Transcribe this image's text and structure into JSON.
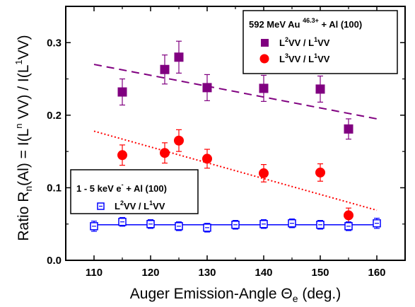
{
  "chart_data": [
    {
      "type": "scatter",
      "xlabel": "Auger Emission-Angle Θe (deg.)",
      "ylabel": "Ratio  Rn(Al) = I(LnVV) / I(L1VV)",
      "xlim": [
        105,
        165
      ],
      "ylim": [
        0.0,
        0.35
      ],
      "xticks": [
        110,
        120,
        130,
        140,
        150,
        160
      ],
      "yticks": [
        0.0,
        0.1,
        0.2,
        0.3
      ],
      "ytick_labels": [
        "0.0",
        "0.1",
        "0.2",
        "0.3"
      ],
      "grid": false,
      "legends": [
        {
          "placement": "top-right",
          "title": "592 MeV Au 46.3+ + Al (100)",
          "entries": [
            "L2VV / L1VV",
            "L3VV / L1VV"
          ]
        },
        {
          "placement": "middle-left",
          "title": "1 - 5 keV e- + Al (100)",
          "entries": [
            "L2VV / L1VV"
          ]
        }
      ],
      "series": [
        {
          "name": "L2VV / L1VV",
          "group": "592 MeV Au 46.3+ + Al (100)",
          "marker": "filled-square",
          "color": "#800080",
          "x": [
            115,
            122.5,
            125,
            130,
            140,
            150,
            155
          ],
          "y": [
            0.232,
            0.263,
            0.28,
            0.238,
            0.237,
            0.236,
            0.181
          ],
          "yerr": [
            0.018,
            0.02,
            0.022,
            0.018,
            0.018,
            0.018,
            0.014
          ],
          "fit": {
            "style": "dashed",
            "x": [
              110,
              160
            ],
            "y": [
              0.27,
              0.195
            ]
          }
        },
        {
          "name": "L3VV / L1VV",
          "group": "592 MeV Au 46.3+ + Al (100)",
          "marker": "filled-circle",
          "color": "#ff0000",
          "x": [
            115,
            122.5,
            125,
            130,
            140,
            150,
            155
          ],
          "y": [
            0.145,
            0.148,
            0.165,
            0.14,
            0.12,
            0.121,
            0.062
          ],
          "yerr": [
            0.014,
            0.014,
            0.015,
            0.013,
            0.012,
            0.012,
            0.01
          ],
          "fit": {
            "style": "dotted",
            "x": [
              110,
              160
            ],
            "y": [
              0.178,
              0.069
            ]
          }
        },
        {
          "name": "L2VV / L1VV",
          "group": "1 - 5 keV e- + Al (100)",
          "marker": "open-square",
          "color": "#0000ff",
          "x": [
            110,
            115,
            120,
            125,
            130,
            135,
            140,
            145,
            150,
            155,
            160
          ],
          "y": [
            0.047,
            0.053,
            0.05,
            0.047,
            0.045,
            0.049,
            0.05,
            0.051,
            0.049,
            0.047,
            0.051
          ],
          "yerr": [
            0.007,
            0.006,
            0.006,
            0.006,
            0.006,
            0.006,
            0.006,
            0.006,
            0.006,
            0.006,
            0.007
          ],
          "fit": {
            "style": "solid",
            "x": [
              110,
              160
            ],
            "y": [
              0.049,
              0.049
            ]
          }
        }
      ]
    }
  ]
}
